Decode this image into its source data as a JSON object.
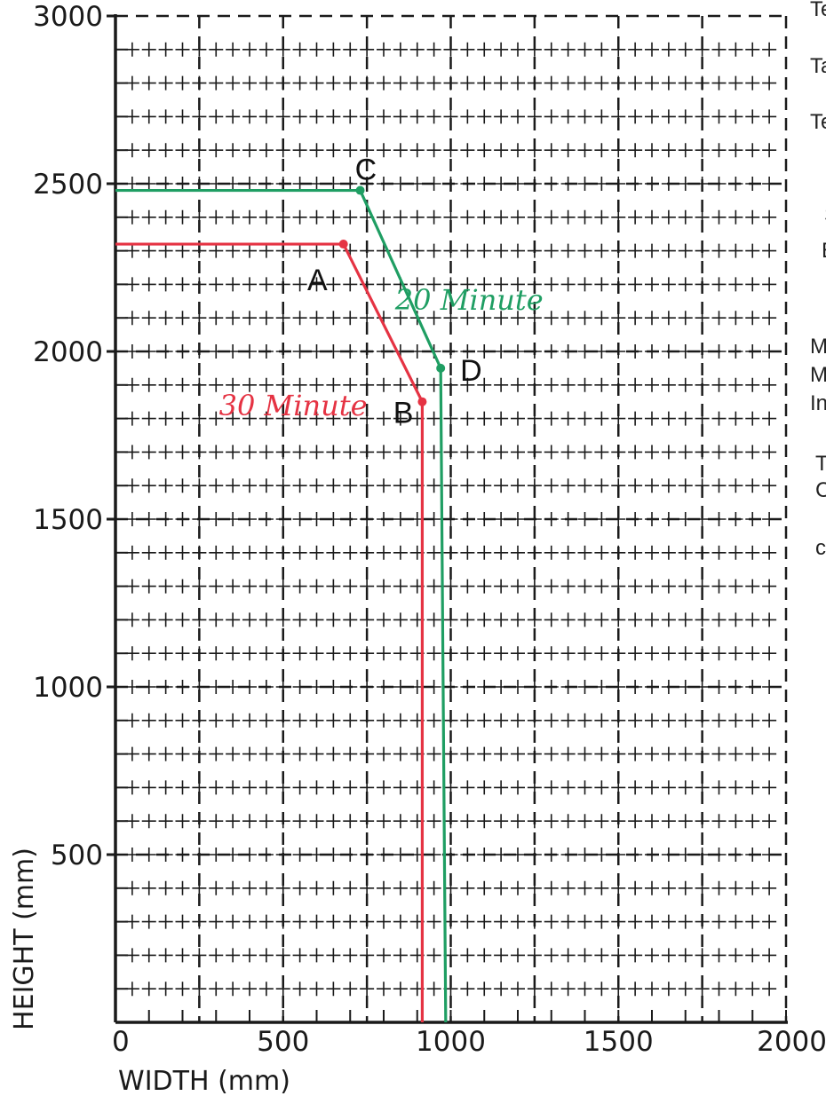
{
  "chart_data": {
    "type": "line",
    "xlabel": "WIDTH (mm)",
    "ylabel": "HEIGHT (mm)",
    "xlim": [
      0,
      2000
    ],
    "ylim": [
      0,
      3000
    ],
    "x_ticks": [
      "0",
      "500",
      "1000",
      "1500",
      "2000"
    ],
    "y_ticks": [
      "3000",
      "2500",
      "2000",
      "1500",
      "1000",
      "500"
    ],
    "x_tick_values": [
      0,
      500,
      1000,
      1500,
      2000
    ],
    "y_tick_values": [
      3000,
      2500,
      2000,
      1500,
      1000,
      500
    ],
    "grid": "on",
    "series": [
      {
        "name": "20 Minute",
        "color": "#1f9e63",
        "points": [
          [
            0,
            2480
          ],
          [
            730,
            2480
          ],
          [
            970,
            1950
          ],
          [
            985,
            0
          ]
        ]
      },
      {
        "name": "30 Minute",
        "color": "#e53343",
        "points": [
          [
            0,
            2320
          ],
          [
            680,
            2320
          ],
          [
            915,
            1850
          ],
          [
            915,
            0
          ]
        ]
      }
    ],
    "point_labels": [
      {
        "label": "A",
        "x": 680,
        "y": 2320,
        "color": "#e53343"
      },
      {
        "label": "B",
        "x": 915,
        "y": 1850,
        "color": "#e53343"
      },
      {
        "label": "C",
        "x": 730,
        "y": 2480,
        "color": "#1f9e63"
      },
      {
        "label": "D",
        "x": 970,
        "y": 1950,
        "color": "#1f9e63"
      }
    ]
  },
  "margin_text": [
    "Te",
    "Ta",
    "Te",
    "S",
    "E",
    "M",
    "M",
    "In",
    "T",
    "C",
    "c"
  ]
}
